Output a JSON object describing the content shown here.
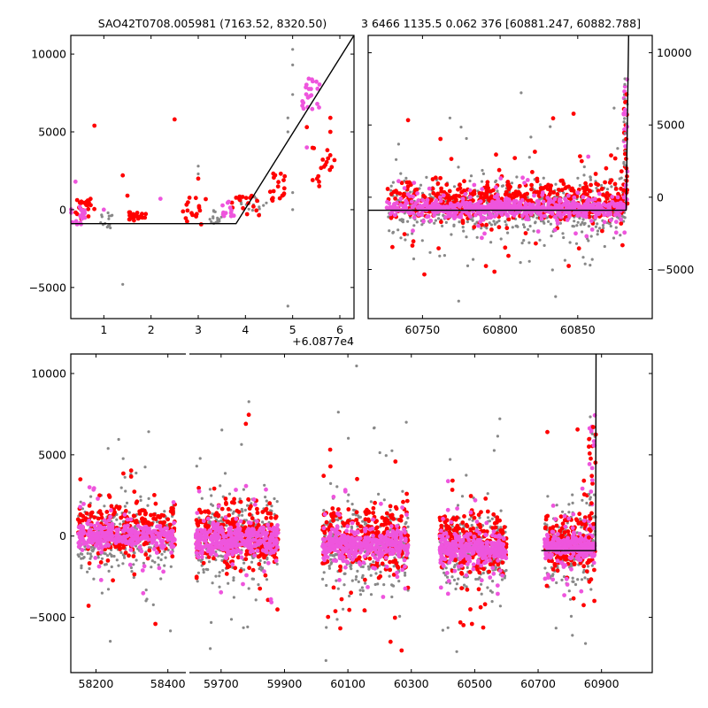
{
  "titles": {
    "left": "SAO42T0708.005981 (7163.52, 8320.50)",
    "right": "3 6466 1135.5 0.062 376 [60881.247, 60882.788]"
  },
  "colors": {
    "series_gray": "#888888",
    "series_red": "#ff0000",
    "series_magenta": "#ee55dd",
    "model_line": "#000000"
  },
  "chart_data": [
    {
      "id": "zoom-in",
      "type": "scatter",
      "title": "SAO42T0708.005981 (7163.52, 8320.50)",
      "x_offset_label": "+6.0877e4",
      "x_offset": 60877,
      "xlim": [
        0.3,
        6.3
      ],
      "ylim": [
        -7000,
        11200
      ],
      "xticks": [
        1,
        2,
        3,
        4,
        5,
        6
      ],
      "xtick_labels": [
        "1",
        "2",
        "3",
        "4",
        "5",
        "6"
      ],
      "yticks": [
        10000,
        5000,
        0,
        -5000
      ],
      "ytick_labels": [
        "10000",
        "5000",
        "0",
        "−5000"
      ],
      "yaxis_side": "left",
      "model": {
        "x": [
          0.3,
          3.8,
          6.3
        ],
        "y": [
          -900,
          -900,
          11200
        ]
      },
      "clusters": [
        {
          "series": "magenta",
          "x": [
            0.3,
            0.6
          ],
          "y": [
            -1000,
            200
          ],
          "n": 18
        },
        {
          "series": "red",
          "x": [
            0.4,
            0.8
          ],
          "y": [
            -600,
            700
          ],
          "n": 22
        },
        {
          "series": "gray",
          "x": [
            0.9,
            1.2
          ],
          "y": [
            -1400,
            -200
          ],
          "n": 15
        },
        {
          "series": "red",
          "x": [
            1.5,
            1.9
          ],
          "y": [
            -700,
            -100
          ],
          "n": 20
        },
        {
          "series": "red",
          "x": [
            2.6,
            3.2
          ],
          "y": [
            -1000,
            800
          ],
          "n": 18
        },
        {
          "series": "gray",
          "x": [
            3.2,
            3.5
          ],
          "y": [
            -900,
            0
          ],
          "n": 16
        },
        {
          "series": "magenta",
          "x": [
            3.5,
            3.8
          ],
          "y": [
            -500,
            600
          ],
          "n": 12
        },
        {
          "series": "red",
          "x": [
            3.7,
            4.3
          ],
          "y": [
            -400,
            900
          ],
          "n": 18
        },
        {
          "series": "gray",
          "x": [
            3.9,
            4.5
          ],
          "y": [
            -300,
            900
          ],
          "n": 14
        },
        {
          "series": "red",
          "x": [
            4.5,
            4.9
          ],
          "y": [
            500,
            2500
          ],
          "n": 18
        },
        {
          "series": "magenta",
          "x": [
            5.2,
            5.6
          ],
          "y": [
            6400,
            8500
          ],
          "n": 22
        },
        {
          "series": "red",
          "x": [
            5.4,
            5.9
          ],
          "y": [
            1500,
            4000
          ],
          "n": 18
        }
      ],
      "outliers": [
        {
          "series": "red",
          "x": 0.8,
          "y": 5400
        },
        {
          "series": "red",
          "x": 2.5,
          "y": 5800
        },
        {
          "series": "red",
          "x": 1.4,
          "y": 2200
        },
        {
          "series": "red",
          "x": 1.5,
          "y": 900
        },
        {
          "series": "red",
          "x": 3.0,
          "y": 2000
        },
        {
          "series": "magenta",
          "x": 0.4,
          "y": 1800
        },
        {
          "series": "magenta",
          "x": 1.0,
          "y": 0
        },
        {
          "series": "magenta",
          "x": 2.2,
          "y": 700
        },
        {
          "series": "gray",
          "x": 1.4,
          "y": -4800
        },
        {
          "series": "gray",
          "x": 3.0,
          "y": 2800
        },
        {
          "series": "gray",
          "x": 3.0,
          "y": 2300
        },
        {
          "series": "gray",
          "x": 5.0,
          "y": 10300
        },
        {
          "series": "gray",
          "x": 5.0,
          "y": 9300
        },
        {
          "series": "gray",
          "x": 5.0,
          "y": 7400
        },
        {
          "series": "gray",
          "x": 4.9,
          "y": 5900
        },
        {
          "series": "gray",
          "x": 4.9,
          "y": 5000
        },
        {
          "series": "gray",
          "x": 4.9,
          "y": -6200
        },
        {
          "series": "gray",
          "x": 5.0,
          "y": 1100
        },
        {
          "series": "gray",
          "x": 5.0,
          "y": 0
        },
        {
          "series": "red",
          "x": 5.8,
          "y": 5900
        },
        {
          "series": "red",
          "x": 5.8,
          "y": 5000
        },
        {
          "series": "red",
          "x": 5.3,
          "y": 5300
        },
        {
          "series": "magenta",
          "x": 5.3,
          "y": 4000
        }
      ]
    },
    {
      "id": "recent",
      "type": "scatter",
      "title": "3 6466 1135.5 0.062 376 [60881.247, 60882.788]",
      "xlim": [
        60715,
        60898
      ],
      "ylim": [
        -8400,
        11200
      ],
      "xticks": [
        60750,
        60800,
        60850
      ],
      "xtick_labels": [
        "60750",
        "60800",
        "60850"
      ],
      "yticks": [
        10000,
        5000,
        0,
        -5000
      ],
      "ytick_labels": [
        "10000",
        "5000",
        "0",
        "−5000"
      ],
      "yaxis_side": "right",
      "model": {
        "x": [
          60715,
          60881.2,
          60882.8
        ],
        "y": [
          -900,
          -900,
          11200
        ]
      },
      "band": {
        "x": [
          60727,
          60881
        ],
        "center": -900,
        "spread": 1000
      },
      "n_points": 1800
    },
    {
      "id": "full",
      "type": "scatter",
      "broken_axis": true,
      "segments": [
        {
          "xlim": [
            58130,
            58450
          ],
          "xticks": [
            58200,
            58400
          ],
          "xtick_labels": [
            "58200",
            "58400"
          ]
        },
        {
          "xlim": [
            59600,
            61060
          ],
          "xticks": [
            59700,
            59900,
            60100,
            60300,
            60500,
            60700,
            60900
          ],
          "xtick_labels": [
            "59700",
            "59900",
            "60100",
            "60300",
            "60500",
            "60700",
            "60900"
          ]
        }
      ],
      "ylim": [
        -8400,
        11200
      ],
      "yticks": [
        10000,
        5000,
        0,
        -5000
      ],
      "ytick_labels": [
        "10000",
        "5000",
        "0",
        "−5000"
      ],
      "yaxis_side": "left",
      "model": {
        "x": [
          60710,
          60881.2,
          60882.8
        ],
        "y": [
          -900,
          -900,
          11200
        ]
      },
      "seasons": [
        {
          "x": [
            58150,
            58420
          ],
          "center": 0,
          "spread": 900,
          "n": 900
        },
        {
          "x": [
            59620,
            59880
          ],
          "center": -200,
          "spread": 1100,
          "n": 1000
        },
        {
          "x": [
            60020,
            60290
          ],
          "center": -500,
          "spread": 1100,
          "n": 1000
        },
        {
          "x": [
            60390,
            60600
          ],
          "center": -800,
          "spread": 1000,
          "n": 900
        },
        {
          "x": [
            60720,
            60880
          ],
          "center": -700,
          "spread": 1000,
          "n": 700
        }
      ]
    }
  ]
}
